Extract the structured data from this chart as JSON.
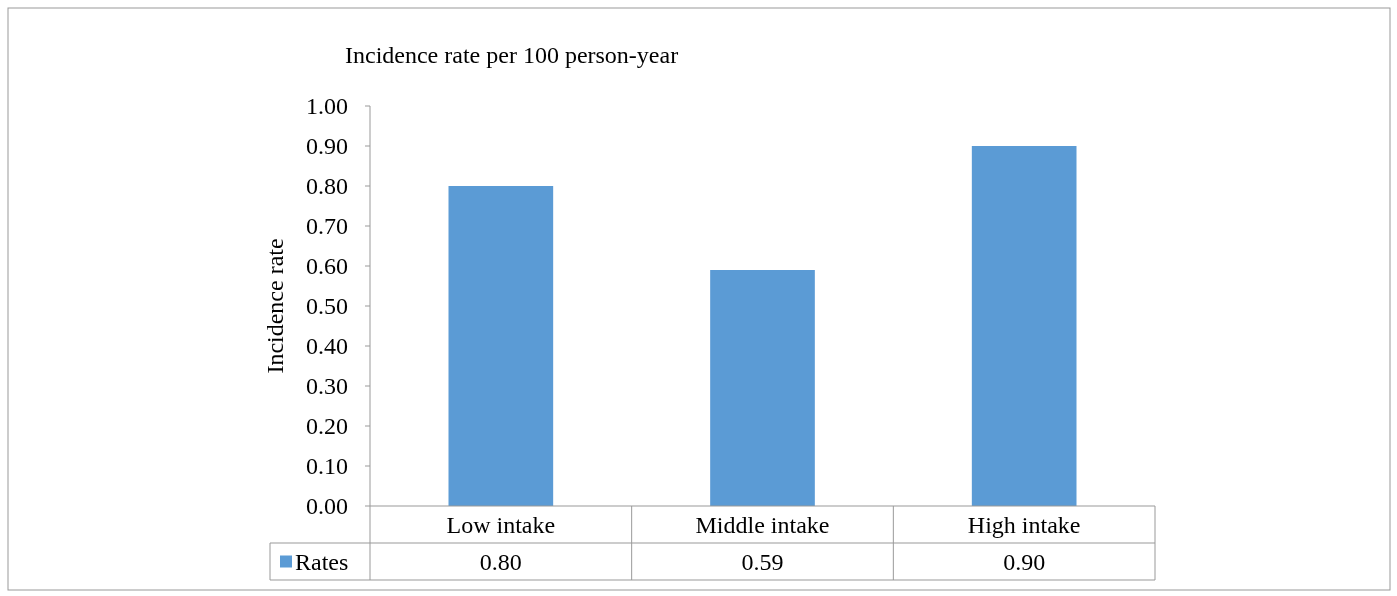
{
  "chart_data": {
    "type": "bar",
    "title": "Incidence rate per 100 person-year",
    "ylabel": "Incidence rate",
    "categories": [
      "Low intake",
      "Middle intake",
      "High intake"
    ],
    "series": [
      {
        "name": "Rates",
        "color": "#5b9bd5",
        "values": [
          0.8,
          0.59,
          0.9
        ],
        "value_labels": [
          "0.80",
          "0.59",
          "0.90"
        ]
      }
    ],
    "ylim": [
      0,
      1
    ],
    "yticks": [
      {
        "value": 0,
        "label": "0.00"
      },
      {
        "value": 0.1,
        "label": "0.10"
      },
      {
        "value": 0.2,
        "label": "0.20"
      },
      {
        "value": 0.3,
        "label": "0.30"
      },
      {
        "value": 0.4,
        "label": "0.40"
      },
      {
        "value": 0.5,
        "label": "0.50"
      },
      {
        "value": 0.6,
        "label": "0.60"
      },
      {
        "value": 0.7,
        "label": "0.70"
      },
      {
        "value": 0.8,
        "label": "0.80"
      },
      {
        "value": 0.9,
        "label": "0.90"
      },
      {
        "value": 1,
        "label": "1.00"
      }
    ],
    "legend": "bottom",
    "grid": false
  }
}
